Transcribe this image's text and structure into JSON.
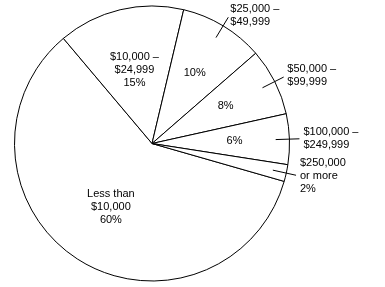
{
  "chart_data": {
    "type": "pie",
    "categories": [
      "Less than $10,000",
      "$10,000 – $24,999",
      "$25,000 – $49,999",
      "$50,000 – $99,999",
      "$100,000 – $249,999",
      "$250,000 or more"
    ],
    "values": [
      60,
      15,
      10,
      8,
      6,
      2
    ],
    "value_labels": [
      "60%",
      "15%",
      "10%",
      "8%",
      "6%",
      "2%"
    ],
    "data_labels": true,
    "color": "#ffffff"
  }
}
